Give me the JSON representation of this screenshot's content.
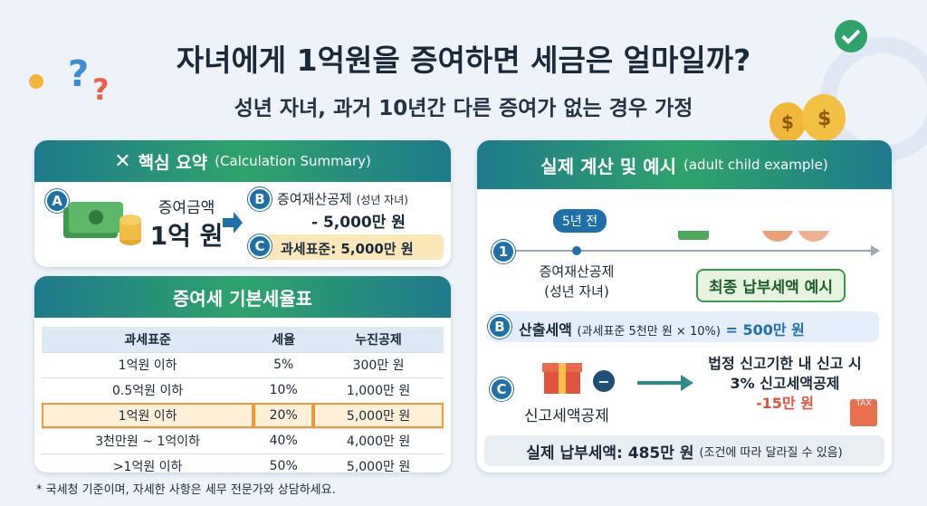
{
  "header": {
    "title": "자녀에게 1억원을 증여하면 세금은 얼마일까?",
    "subtitle": "성년 자녀, 과거 10년간 다른 증여가 없는 경우 가정",
    "question_mark": "?"
  },
  "summary": {
    "title": "핵심 요약",
    "title_en": "(Calculation Summary)",
    "a": {
      "badge": "A",
      "label": "증여금액",
      "amount": "1억 원"
    },
    "b": {
      "badge": "B",
      "label": "증여재산공제",
      "note": "(성년 자녀)",
      "amount": "- 5,000만 원"
    },
    "c": {
      "badge": "C",
      "label": "과세표준: 5,000만 원"
    }
  },
  "table": {
    "title": "증여세 기본세율표",
    "header": [
      "과세표준",
      "세율",
      "누진공제"
    ],
    "rows": [
      [
        "1억원 이하",
        "5%",
        "300만 원"
      ],
      [
        "0.5억원 이하",
        "10%",
        "1,000만 원"
      ],
      [
        "1억원 이하",
        "20%",
        "5,000만 원"
      ],
      [
        "3천만원 ~ 1억이하",
        "40%",
        "4,000만 원"
      ],
      [
        ">1억원 이하",
        "50%",
        "5,000만 원"
      ]
    ],
    "highlight_row": 2
  },
  "footnote": "* 국세청 기준이며, 자세한 사항은 세무 전문가와 상담하세요.",
  "example": {
    "title": "실제 계산 및 예시",
    "title_en": "(adult child example)",
    "timeline_label": "5년 전",
    "step1": {
      "badge": "1",
      "label": "증여재산공제",
      "note": "(성년 자녀)"
    },
    "banner": "최종 납부세액 예시",
    "b": {
      "badge": "B",
      "label": "산출세액",
      "formula": "(과세표준 5천만 원 × 10%)",
      "result": "= 500만 원"
    },
    "c": {
      "badge": "C",
      "minus": "−",
      "label": "신고세액공제",
      "line1": "법정 신고기한 내 신고 시",
      "line2": "3% 신고세액공제",
      "amount": "-15만 원",
      "tax_icon": "TAX"
    },
    "total": {
      "label": "실제 납부세액: 485만 원",
      "note": "(조건에 따라 달라질 수 있음)"
    }
  }
}
